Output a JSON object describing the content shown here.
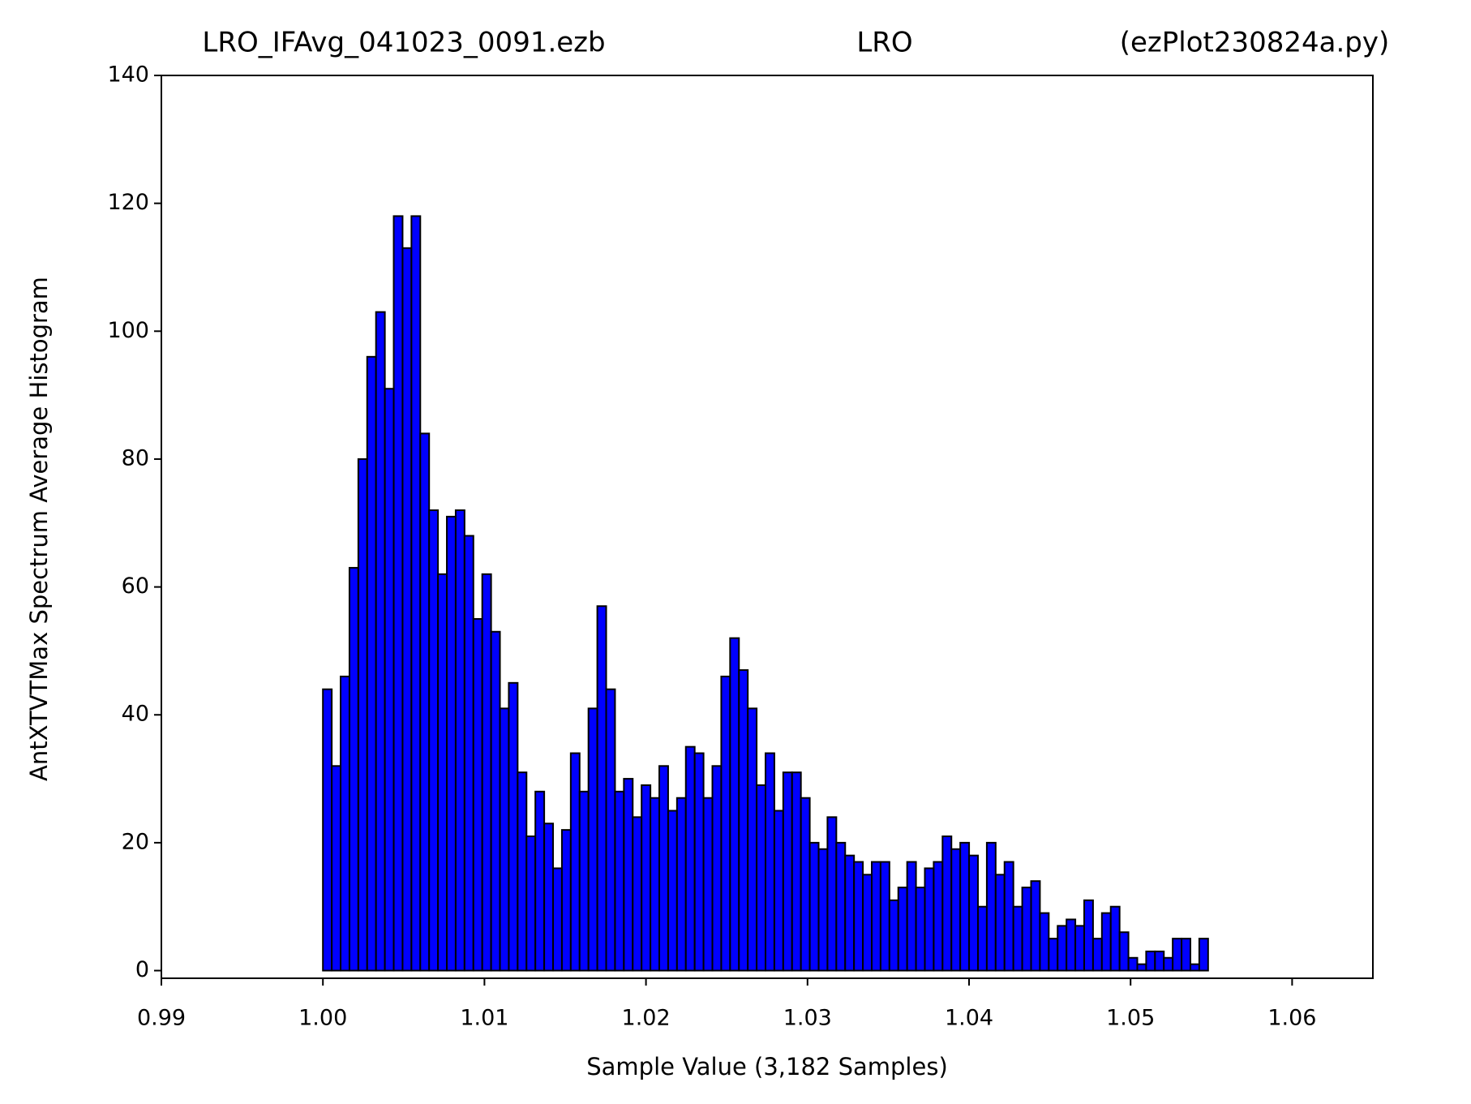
{
  "chart_data": {
    "type": "histogram",
    "titles": [
      "LRO_IFAvg_041023_0091.ezb",
      "LRO",
      "(ezPlot230824a.py)"
    ],
    "xlabel": "Sample Value (3,182 Samples)",
    "ylabel": "AntXTVTMax Spectrum Average Histogram",
    "color": "#0000ff",
    "edgecolor": "#000000",
    "bins": [
      1.0,
      1.000548,
      1.001096,
      1.001644,
      1.002192,
      1.00274,
      1.003288,
      1.003836,
      1.004384,
      1.004932,
      1.00548,
      1.006028,
      1.006576,
      1.007124,
      1.007672,
      1.00822,
      1.008768,
      1.009316,
      1.009864,
      1.010412,
      1.01096,
      1.011508,
      1.012056,
      1.012604,
      1.013152,
      1.0137,
      1.014248,
      1.014796,
      1.015344,
      1.015892,
      1.01644,
      1.016988,
      1.017536,
      1.018084,
      1.018632,
      1.01918,
      1.019728,
      1.020276,
      1.020824,
      1.021372,
      1.02192,
      1.022468,
      1.023016,
      1.023564,
      1.024112,
      1.02466,
      1.025208,
      1.025756,
      1.026304,
      1.026852,
      1.0274,
      1.027948,
      1.028496,
      1.029044,
      1.029592,
      1.03014,
      1.030688,
      1.031236,
      1.031784,
      1.032332,
      1.03288,
      1.033428,
      1.033976,
      1.034524,
      1.035072,
      1.03562,
      1.036168,
      1.036716,
      1.037264,
      1.037812,
      1.03836,
      1.038908,
      1.039456,
      1.040004,
      1.040552,
      1.0411,
      1.041648,
      1.042196,
      1.042744,
      1.043292,
      1.04384,
      1.044388,
      1.044936,
      1.045484,
      1.046032,
      1.04658,
      1.047128,
      1.047676,
      1.048224,
      1.048772,
      1.04932,
      1.049868,
      1.050416,
      1.050964,
      1.051512,
      1.05206,
      1.052608,
      1.053156,
      1.053704,
      1.054252,
      1.0548
    ],
    "values": [
      44,
      32,
      46,
      63,
      80,
      96,
      103,
      91,
      118,
      113,
      118,
      84,
      72,
      62,
      71,
      72,
      68,
      55,
      62,
      53,
      41,
      45,
      31,
      21,
      28,
      23,
      16,
      22,
      34,
      28,
      41,
      57,
      44,
      28,
      30,
      24,
      29,
      27,
      32,
      25,
      27,
      35,
      34,
      27,
      32,
      46,
      52,
      47,
      41,
      29,
      34,
      25,
      31,
      31,
      27,
      20,
      19,
      24,
      20,
      18,
      17,
      15,
      17,
      17,
      11,
      13,
      17,
      13,
      16,
      17,
      21,
      19,
      20,
      18,
      10,
      20,
      15,
      17,
      10,
      13,
      14,
      9,
      5,
      7,
      8,
      7,
      11,
      5,
      9,
      10,
      6,
      2,
      1,
      3,
      3,
      2,
      5,
      5,
      1,
      5
    ],
    "xlim": [
      0.99,
      1.065
    ],
    "xticks": [
      0.99,
      {
        "value": 1,
        "label": "1.00"
      },
      1.01,
      1.02,
      1.03,
      1.04,
      1.05,
      1.06
    ],
    "ylim": [
      -1.2,
      140
    ],
    "yticks": [
      0,
      20,
      40,
      60,
      80,
      100,
      120,
      140
    ]
  }
}
